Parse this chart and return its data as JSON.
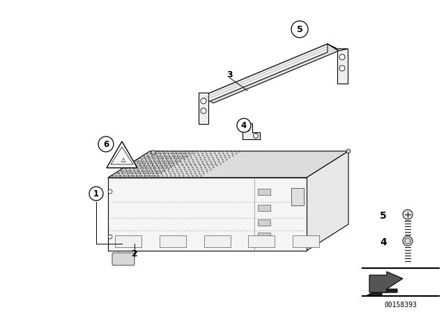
{
  "bg_color": "#ffffff",
  "part_number": "00158393",
  "line_color": "#000000",
  "line_width": 0.8,
  "box_face_color": "#f5f5f5",
  "box_top_color": "#e0e0e0",
  "box_right_color": "#ebebeb"
}
